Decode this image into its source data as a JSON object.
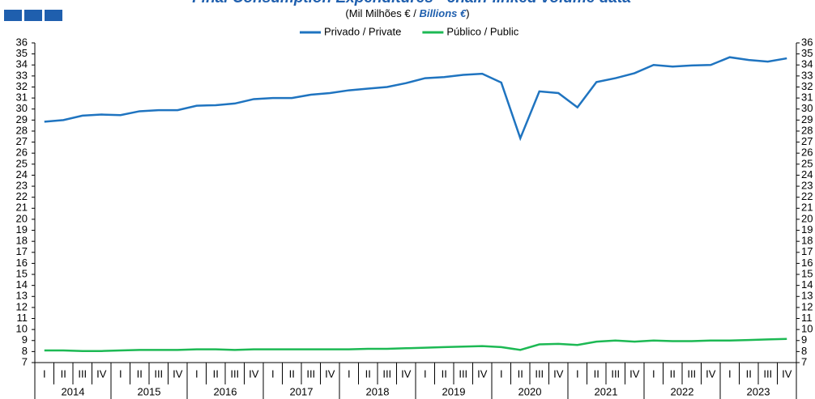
{
  "chart_data": {
    "type": "line",
    "title": "Final Consumption Expenditures - chain-linked volume data",
    "subtitle_parts": [
      "(Mil Milhões € / ",
      "Billions €",
      ")"
    ],
    "categories": [
      "I",
      "II",
      "III",
      "IV",
      "I",
      "II",
      "III",
      "IV",
      "I",
      "II",
      "III",
      "IV",
      "I",
      "II",
      "III",
      "IV",
      "I",
      "II",
      "III",
      "IV",
      "I",
      "II",
      "III",
      "IV",
      "I",
      "II",
      "III",
      "IV",
      "I",
      "II",
      "III",
      "IV",
      "I",
      "II",
      "III",
      "IV",
      "I",
      "II",
      "III",
      "IV"
    ],
    "years": [
      "2014",
      "2015",
      "2016",
      "2017",
      "2018",
      "2019",
      "2020",
      "2021",
      "2022",
      "2023"
    ],
    "series": [
      {
        "name": "Privado / Private",
        "color": "#1f74c0",
        "values": [
          28.85,
          29.0,
          29.4,
          29.5,
          29.45,
          29.8,
          29.9,
          29.9,
          30.3,
          30.35,
          30.5,
          30.9,
          31.0,
          31.0,
          31.3,
          31.45,
          31.7,
          31.85,
          32.0,
          32.35,
          32.8,
          32.9,
          33.1,
          33.2,
          32.4,
          27.35,
          31.6,
          31.45,
          30.15,
          32.45,
          32.8,
          33.25,
          34.0,
          33.85,
          33.95,
          34.0,
          34.7,
          34.45,
          34.3,
          34.6
        ]
      },
      {
        "name": "Público / Public",
        "color": "#1db954",
        "values": [
          8.1,
          8.1,
          8.05,
          8.05,
          8.1,
          8.15,
          8.15,
          8.15,
          8.2,
          8.2,
          8.15,
          8.2,
          8.2,
          8.2,
          8.2,
          8.2,
          8.2,
          8.25,
          8.25,
          8.3,
          8.35,
          8.4,
          8.45,
          8.5,
          8.4,
          8.15,
          8.65,
          8.7,
          8.6,
          8.9,
          9.0,
          8.9,
          9.0,
          8.95,
          8.95,
          9.0,
          9.0,
          9.05,
          9.1,
          9.15
        ]
      }
    ],
    "ylim": [
      7,
      36
    ],
    "yticks": [
      7,
      8,
      9,
      10,
      11,
      12,
      13,
      14,
      15,
      16,
      17,
      18,
      19,
      20,
      21,
      22,
      23,
      24,
      25,
      26,
      27,
      28,
      29,
      30,
      31,
      32,
      33,
      34,
      35,
      36
    ],
    "secondary_y_labels": true,
    "legend": "top"
  }
}
